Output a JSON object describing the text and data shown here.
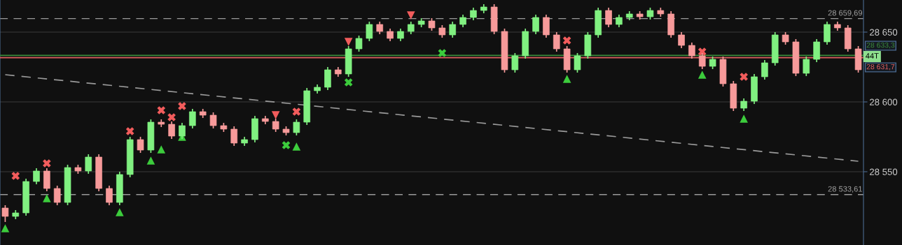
{
  "chart_data": {
    "type": "candlestick",
    "categories": [
      null,
      null,
      null,
      null,
      null,
      null,
      null,
      null,
      null,
      null,
      null,
      null,
      null,
      null,
      null,
      null,
      null,
      null,
      null,
      null,
      null,
      null,
      null,
      null,
      null,
      null,
      null,
      null,
      null,
      null,
      null,
      null,
      null,
      null,
      null,
      null,
      null,
      null,
      null,
      null,
      null,
      null,
      null,
      null,
      null,
      null,
      null,
      null,
      null,
      null,
      null,
      null,
      null,
      null,
      null,
      null,
      null,
      null,
      null,
      null,
      null,
      null,
      null,
      null,
      null,
      null,
      null,
      null,
      null,
      null,
      null,
      null,
      null,
      null,
      null,
      null,
      null,
      null,
      null,
      null,
      null,
      null,
      null
    ],
    "ohlc": [
      [
        28524,
        28526,
        28514,
        28518
      ],
      [
        28518,
        28522.5,
        28516,
        28520.5
      ],
      [
        28520.5,
        28545,
        28518.5,
        28543
      ],
      [
        28543,
        28552.5,
        28541,
        28550.5
      ],
      [
        28550.5,
        28552.5,
        28536,
        28538
      ],
      [
        28538,
        28540,
        28526,
        28528
      ],
      [
        28528,
        28555,
        28526,
        28553
      ],
      [
        28553,
        28555,
        28548.5,
        28550.5
      ],
      [
        28550.5,
        28562.5,
        28548.5,
        28560.5
      ],
      [
        28560.5,
        28562.5,
        28536,
        28538
      ],
      [
        28538,
        28540,
        28526,
        28528
      ],
      [
        28528,
        28550,
        28526,
        28548
      ],
      [
        28548,
        28575,
        28546,
        28573
      ],
      [
        28573,
        28575,
        28563.5,
        28565.5
      ],
      [
        28565.5,
        28587.5,
        28563.5,
        28585.5
      ],
      [
        28585.5,
        28587.5,
        28582,
        28584
      ],
      [
        28584,
        28586,
        28573.5,
        28575.5
      ],
      [
        28575.5,
        28585,
        28573.5,
        28583
      ],
      [
        28583,
        28595,
        28581,
        28593
      ],
      [
        28593,
        28595,
        28588.5,
        28590.5
      ],
      [
        28590.5,
        28592.5,
        28581,
        28583
      ],
      [
        28583,
        28585,
        28578.5,
        28580.5
      ],
      [
        28580.5,
        28582.5,
        28568.5,
        28570.5
      ],
      [
        28570.5,
        28575,
        28568.5,
        28573
      ],
      [
        28573,
        28590,
        28571,
        28588
      ],
      [
        28588,
        28590,
        28584,
        28586
      ],
      [
        28586,
        28588,
        28578.5,
        28580.5
      ],
      [
        28580.5,
        28582.5,
        28576,
        28578
      ],
      [
        28578,
        28587.5,
        28576,
        28585.5
      ],
      [
        28585.5,
        28610,
        28583.5,
        28608
      ],
      [
        28608,
        28612.5,
        28606,
        28610.5
      ],
      [
        28610.5,
        28625,
        28608.5,
        28623
      ],
      [
        28623,
        28625,
        28618,
        28620
      ],
      [
        28620,
        28640,
        28618,
        28638
      ],
      [
        28638,
        28647.5,
        28636,
        28645.5
      ],
      [
        28645.5,
        28657.5,
        28643.5,
        28655.5
      ],
      [
        28655.5,
        28657.5,
        28648.5,
        28650.5
      ],
      [
        28650.5,
        28652.5,
        28643.5,
        28645.5
      ],
      [
        28645.5,
        28652.5,
        28643.5,
        28650.5
      ],
      [
        28650.5,
        28657.5,
        28648.5,
        28655.5
      ],
      [
        28655.5,
        28660,
        28653.5,
        28658
      ],
      [
        28658,
        28660,
        28651,
        28653
      ],
      [
        28653,
        28655,
        28646,
        28648
      ],
      [
        28648,
        28657.5,
        28646,
        28655.5
      ],
      [
        28655.5,
        28662.5,
        28653.5,
        28660.5
      ],
      [
        28660.5,
        28667.5,
        28658.5,
        28665.5
      ],
      [
        28665.5,
        28670,
        28663.5,
        28668
      ],
      [
        28668,
        28670,
        28648.5,
        28650.5
      ],
      [
        28650.5,
        28652.5,
        28621,
        28623
      ],
      [
        28623,
        28635,
        28621,
        28633
      ],
      [
        28633,
        28652.5,
        28631,
        28650.5
      ],
      [
        28650.5,
        28662.5,
        28648.5,
        28660.5
      ],
      [
        28660.5,
        28662.5,
        28646,
        28648
      ],
      [
        28648,
        28650,
        28636,
        28638
      ],
      [
        28638,
        28640,
        28621,
        28623
      ],
      [
        28623,
        28635,
        28621,
        28633
      ],
      [
        28633,
        28650,
        28631,
        28648
      ],
      [
        28648,
        28667.5,
        28646,
        28665.5
      ],
      [
        28665.5,
        28667.5,
        28653.5,
        28655.5
      ],
      [
        28655.5,
        28662.5,
        28653.5,
        28660.5
      ],
      [
        28660.5,
        28665,
        28658.5,
        28663
      ],
      [
        28663,
        28665,
        28659,
        28661
      ],
      [
        28661,
        28667.5,
        28659,
        28665.5
      ],
      [
        28665.5,
        28667.5,
        28661,
        28663
      ],
      [
        28663,
        28665,
        28646,
        28648
      ],
      [
        28648,
        28650,
        28638.5,
        28640.5
      ],
      [
        28640.5,
        28642.5,
        28631,
        28633
      ],
      [
        28633,
        28635,
        28623.5,
        28625.5
      ],
      [
        28625.5,
        28632.5,
        28623.5,
        28630.5
      ],
      [
        28630.5,
        28632.5,
        28611,
        28613
      ],
      [
        28613,
        28615,
        28593.5,
        28595.5
      ],
      [
        28595.5,
        28602.5,
        28593.5,
        28600.5
      ],
      [
        28600.5,
        28620,
        28598.5,
        28618
      ],
      [
        28618,
        28630,
        28616,
        28628
      ],
      [
        28628,
        28650,
        28626,
        28648
      ],
      [
        28648,
        28650,
        28641,
        28643
      ],
      [
        28643,
        28645,
        28618.5,
        28620.5
      ],
      [
        28620.5,
        28632.5,
        28618.5,
        28630.5
      ],
      [
        28630.5,
        28645,
        28628.5,
        28643
      ],
      [
        28643,
        28657.5,
        28641,
        28655.5
      ],
      [
        28655.5,
        28657.5,
        28651,
        28653
      ],
      [
        28653,
        28655,
        28636,
        28638
      ],
      [
        28638,
        28640,
        28621,
        28623
      ]
    ],
    "colors": [
      "#f79a9a",
      "#80f080",
      "#80f080",
      "#80f080",
      "#f79a9a",
      "#f79a9a",
      "#80f080",
      "#f79a9a",
      "#80f080",
      "#f79a9a",
      "#f79a9a",
      "#80f080",
      "#80f080",
      "#f79a9a",
      "#80f080",
      "#f79a9a",
      "#f79a9a",
      "#80f080",
      "#80f080",
      "#f79a9a",
      "#f79a9a",
      "#f79a9a",
      "#f79a9a",
      "#80f080",
      "#80f080",
      "#f79a9a",
      "#f79a9a",
      "#f79a9a",
      "#80f080",
      "#80f080",
      "#80f080",
      "#80f080",
      "#f79a9a",
      "#80f080",
      "#80f080",
      "#80f080",
      "#f79a9a",
      "#f79a9a",
      "#80f080",
      "#80f080",
      "#80f080",
      "#f79a9a",
      "#f79a9a",
      "#80f080",
      "#80f080",
      "#80f080",
      "#80f080",
      "#f79a9a",
      "#f79a9a",
      "#80f080",
      "#80f080",
      "#80f080",
      "#f79a9a",
      "#f79a9a",
      "#f79a9a",
      "#80f080",
      "#80f080",
      "#80f080",
      "#f79a9a",
      "#80f080",
      "#80f080",
      "#f79a9a",
      "#80f080",
      "#f79a9a",
      "#f79a9a",
      "#f79a9a",
      "#f79a9a",
      "#f79a9a",
      "#80f080",
      "#f79a9a",
      "#f79a9a",
      "#80f080",
      "#80f080",
      "#80f080",
      "#80f080",
      "#f79a9a",
      "#f79a9a",
      "#80f080",
      "#80f080",
      "#80f080",
      "#f79a9a",
      "#f79a9a",
      "#f79a9a"
    ],
    "series": [
      {
        "type": "line",
        "color": "#9a9a9a",
        "line_style": "dashed",
        "marker": "none",
        "values": [
          28619.5,
          null,
          null,
          null,
          null,
          null,
          null,
          null,
          null,
          null,
          null,
          null,
          null,
          null,
          null,
          null,
          null,
          null,
          null,
          null,
          null,
          null,
          null,
          null,
          null,
          null,
          null,
          null,
          null,
          null,
          null,
          null,
          null,
          null,
          null,
          null,
          null,
          null,
          null,
          null,
          null,
          null,
          null,
          null,
          null,
          null,
          null,
          null,
          null,
          null,
          null,
          null,
          null,
          null,
          null,
          null,
          null,
          null,
          null,
          null,
          null,
          null,
          null,
          null,
          null,
          null,
          null,
          null,
          null,
          null,
          null,
          null,
          null,
          null,
          null,
          null,
          null,
          null,
          null,
          null,
          null,
          null,
          28557.5
        ]
      },
      {
        "type": "scatter",
        "color": "#f25c5c",
        "marker": "cross",
        "values": [
          null,
          28547,
          null,
          null,
          28556,
          null,
          null,
          null,
          null,
          null,
          null,
          null,
          28579,
          null,
          null,
          28594,
          28589,
          28597,
          null,
          null,
          null,
          null,
          null,
          null,
          null,
          null,
          null,
          null,
          28593,
          null,
          null,
          null,
          null,
          null,
          null,
          null,
          null,
          null,
          null,
          null,
          null,
          null,
          null,
          null,
          null,
          null,
          null,
          null,
          null,
          null,
          null,
          null,
          null,
          null,
          28644,
          null,
          null,
          null,
          null,
          null,
          null,
          null,
          null,
          null,
          null,
          null,
          null,
          28636,
          null,
          null,
          null,
          28618,
          null,
          null,
          null,
          null,
          null,
          null,
          null,
          null,
          null,
          null,
          null
        ]
      },
      {
        "type": "scatter",
        "color": "#3ccc3c",
        "marker": "cross",
        "values": [
          null,
          null,
          null,
          null,
          null,
          null,
          null,
          null,
          null,
          null,
          null,
          null,
          null,
          null,
          null,
          null,
          null,
          null,
          null,
          null,
          null,
          null,
          null,
          null,
          null,
          null,
          null,
          28569,
          null,
          null,
          null,
          null,
          null,
          28614,
          null,
          null,
          null,
          null,
          null,
          null,
          null,
          null,
          28635,
          null,
          null,
          null,
          null,
          null,
          null,
          null,
          null,
          null,
          null,
          null,
          null,
          null,
          null,
          null,
          null,
          null,
          null,
          null,
          null,
          null,
          null,
          null,
          null,
          null,
          null,
          null,
          null,
          null,
          null,
          null,
          null,
          null,
          null,
          null,
          null,
          null,
          null,
          null,
          null
        ]
      },
      {
        "type": "scatter",
        "color": "#3ccc3c",
        "marker": "triangle",
        "values": [
          28509.5,
          null,
          null,
          null,
          28531,
          null,
          null,
          null,
          null,
          null,
          null,
          28521,
          null,
          null,
          28558,
          28566,
          null,
          28575,
          null,
          null,
          null,
          null,
          null,
          null,
          null,
          null,
          null,
          null,
          28568,
          null,
          null,
          null,
          null,
          null,
          null,
          null,
          null,
          null,
          null,
          null,
          null,
          null,
          null,
          null,
          null,
          null,
          null,
          null,
          null,
          null,
          null,
          null,
          null,
          null,
          28616.5,
          null,
          null,
          null,
          null,
          null,
          null,
          null,
          null,
          null,
          null,
          null,
          null,
          28619.5,
          null,
          null,
          null,
          28588,
          null,
          null,
          null,
          null,
          null,
          null,
          null,
          null,
          null,
          null,
          null
        ]
      },
      {
        "type": "scatter",
        "color": "#f25c5c",
        "marker": "triangle_down",
        "values": [
          null,
          null,
          null,
          null,
          null,
          null,
          null,
          null,
          null,
          null,
          null,
          null,
          null,
          null,
          null,
          null,
          null,
          null,
          null,
          null,
          null,
          null,
          null,
          null,
          null,
          null,
          28590.5,
          null,
          null,
          null,
          null,
          null,
          null,
          28643,
          null,
          null,
          null,
          null,
          null,
          28662,
          null,
          null,
          null,
          null,
          null,
          null,
          null,
          null,
          null,
          null,
          null,
          null,
          null,
          null,
          null,
          null,
          null,
          null,
          null,
          null,
          null,
          null,
          null,
          null,
          null,
          null,
          null,
          null,
          null,
          null,
          null,
          null,
          null,
          null,
          null,
          null,
          null,
          null,
          null,
          null,
          null,
          null,
          null
        ]
      }
    ],
    "ylim": [
      28497.5,
      28673
    ],
    "yticks": [
      {
        "value": 28550,
        "label": "28 550"
      },
      {
        "value": 28600,
        "label": "28 600"
      },
      {
        "value": 28650,
        "label": "28 650"
      }
    ],
    "ref_lines": [
      {
        "axis": "y",
        "value": 28659.69,
        "label": "28 659,69",
        "color": "#9a9a9a",
        "line_style": "dashed"
      },
      {
        "axis": "y",
        "value": 28533.61,
        "label": "28 533,61",
        "color": "#9a9a9a",
        "line_style": "dashed"
      },
      {
        "axis": "y",
        "value": 28633.3,
        "label": "28 633,3",
        "color": "#3a8a3a",
        "line_style": "solid"
      },
      {
        "axis": "y",
        "value": 28631.7,
        "label": "28 631,7",
        "color": "#e06060",
        "line_style": "solid"
      }
    ],
    "annotations": [
      {
        "text": "44T",
        "y": 28632.5
      }
    ],
    "grid": "y",
    "tick_labels": "y",
    "legend": false
  }
}
